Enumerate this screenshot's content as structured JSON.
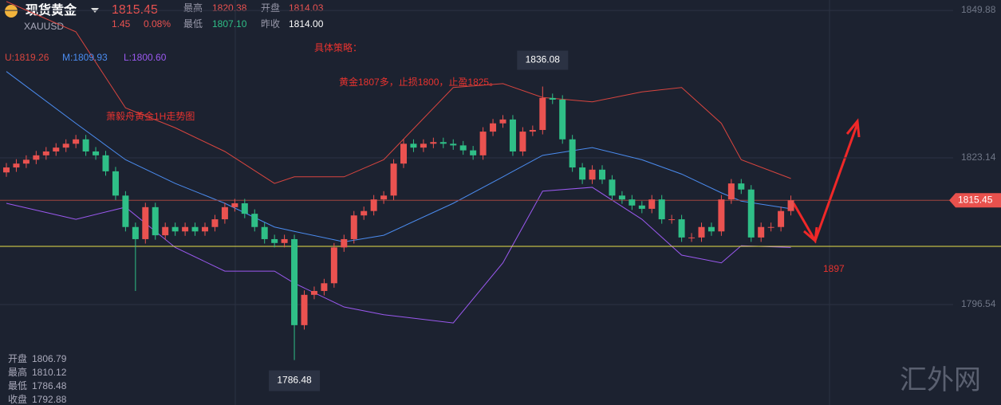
{
  "header": {
    "title": "现货黄金",
    "symbol": "XAUUSD",
    "price": "1815.45",
    "change": "1.45",
    "change_pct": "0.08%",
    "stats": [
      {
        "label": "最高",
        "value": "1820.38"
      },
      {
        "label": "开盘",
        "value": "1814.03"
      },
      {
        "label": "最低",
        "value": "1807.10"
      },
      {
        "label": "昨收",
        "value": "1814.00"
      }
    ]
  },
  "ohlc_info": [
    {
      "label": "开盘",
      "value": "1806.79"
    },
    {
      "label": "最高",
      "value": "1810.12"
    },
    {
      "label": "最低",
      "value": "1786.48"
    },
    {
      "label": "收盘",
      "value": "1792.88"
    }
  ],
  "watermark": "汇外网",
  "chart_data": {
    "type": "candlestick",
    "annotations": [
      "具体策略：",
      "黄金1807多，止损1800，止盈1825。",
      "萧毅舟黄金1H走势图",
      "1897"
    ],
    "ylim": [
      1778.32,
      1851.77
    ],
    "yticks": [
      {
        "value": 1849.88,
        "label": "1849.88"
      },
      1823.14,
      1796.54
    ],
    "current_price": 1815.45,
    "support_line": 1807.1,
    "up_color": "#ea5250",
    "down_color": "#2fbf87",
    "open": [
      1820.5,
      1821.4,
      1822.1,
      1822.8,
      1823.6,
      1824.3,
      1825.0,
      1825.7,
      1826.5,
      1824.3,
      1823.6,
      1820.7,
      1816.3,
      1810.6,
      1808.4,
      1814.2,
      1809.1,
      1810.6,
      1809.8,
      1810.6,
      1809.8,
      1810.6,
      1812.0,
      1814.2,
      1814.9,
      1813.0,
      1810.6,
      1808.4,
      1807.7,
      1808.4,
      1792.8,
      1798.3,
      1799.0,
      1800.4,
      1806.9,
      1808.4,
      1812.7,
      1813.5,
      1815.6,
      1816.3,
      1822.1,
      1825.7,
      1825.0,
      1825.7,
      1826.0,
      1825.7,
      1825.4,
      1824.5,
      1823.6,
      1827.9,
      1829.4,
      1830.1,
      1824.3,
      1827.9,
      1828.2,
      1834.0,
      1833.7,
      1826.5,
      1821.4,
      1819.2,
      1821.0,
      1819.2,
      1816.3,
      1815.6,
      1814.5,
      1813.9,
      1815.6,
      1812.0,
      1812.0,
      1808.7,
      1808.7,
      1810.6,
      1809.8,
      1815.6,
      1818.5,
      1817.4,
      1808.7,
      1810.6,
      1810.6,
      1813.5
    ],
    "high": [
      1822.2,
      1822.9,
      1823.6,
      1824.4,
      1825.1,
      1825.8,
      1826.5,
      1827.3,
      1827.3,
      1825.1,
      1824.4,
      1821.5,
      1817.1,
      1811.4,
      1815.0,
      1815.0,
      1811.4,
      1811.4,
      1811.4,
      1811.4,
      1811.4,
      1812.8,
      1815.0,
      1815.7,
      1815.7,
      1813.8,
      1811.4,
      1809.2,
      1809.2,
      1809.2,
      1799.1,
      1799.8,
      1801.2,
      1807.7,
      1809.2,
      1813.5,
      1814.3,
      1816.4,
      1817.1,
      1822.9,
      1826.5,
      1826.5,
      1826.5,
      1826.8,
      1826.8,
      1826.5,
      1826.2,
      1825.3,
      1828.7,
      1830.2,
      1830.9,
      1830.9,
      1828.7,
      1829.0,
      1836.08,
      1834.8,
      1834.5,
      1827.3,
      1822.2,
      1821.8,
      1821.8,
      1820.0,
      1817.1,
      1816.4,
      1815.3,
      1816.4,
      1816.4,
      1812.8,
      1812.8,
      1809.5,
      1811.4,
      1811.4,
      1816.4,
      1819.3,
      1819.3,
      1818.2,
      1811.4,
      1811.4,
      1814.3,
      1816.3
    ],
    "low": [
      1819.7,
      1820.6,
      1821.3,
      1822.0,
      1822.8,
      1823.5,
      1824.2,
      1824.9,
      1823.5,
      1822.8,
      1819.9,
      1815.5,
      1809.8,
      1799.0,
      1807.6,
      1808.3,
      1808.3,
      1809.0,
      1809.0,
      1809.0,
      1809.0,
      1809.8,
      1811.2,
      1813.4,
      1812.2,
      1809.8,
      1807.6,
      1806.9,
      1806.9,
      1786.48,
      1792.0,
      1797.5,
      1798.2,
      1799.6,
      1806.1,
      1807.6,
      1811.9,
      1812.7,
      1814.8,
      1815.5,
      1821.3,
      1824.2,
      1824.2,
      1824.9,
      1824.9,
      1824.6,
      1823.7,
      1822.8,
      1822.8,
      1827.1,
      1828.6,
      1823.5,
      1823.5,
      1827.1,
      1827.4,
      1832.9,
      1825.7,
      1820.6,
      1818.4,
      1818.4,
      1818.4,
      1815.5,
      1814.8,
      1813.7,
      1813.1,
      1813.1,
      1811.2,
      1811.2,
      1807.9,
      1807.9,
      1807.9,
      1809.0,
      1809.0,
      1814.8,
      1816.6,
      1807.9,
      1807.9,
      1809.8,
      1809.8,
      1812.7
    ],
    "close": [
      1821.4,
      1822.1,
      1822.8,
      1823.6,
      1824.3,
      1825.0,
      1825.7,
      1826.5,
      1824.3,
      1823.6,
      1820.7,
      1816.3,
      1810.6,
      1808.4,
      1814.2,
      1809.1,
      1810.6,
      1809.8,
      1810.6,
      1809.8,
      1810.6,
      1812.0,
      1814.2,
      1814.9,
      1813.0,
      1810.6,
      1808.4,
      1807.7,
      1808.4,
      1792.8,
      1798.3,
      1799.0,
      1800.4,
      1806.9,
      1808.4,
      1812.7,
      1813.5,
      1815.6,
      1816.3,
      1822.1,
      1825.7,
      1825.0,
      1825.7,
      1826.0,
      1825.7,
      1825.4,
      1824.5,
      1823.6,
      1827.9,
      1829.4,
      1830.1,
      1824.3,
      1827.9,
      1828.2,
      1834.0,
      1833.7,
      1826.5,
      1821.4,
      1819.2,
      1821.0,
      1819.2,
      1816.3,
      1815.6,
      1814.5,
      1813.9,
      1815.6,
      1812.0,
      1812.0,
      1808.7,
      1808.7,
      1810.6,
      1809.8,
      1815.6,
      1818.5,
      1817.4,
      1808.7,
      1810.6,
      1810.6,
      1813.5,
      1815.45
    ],
    "series": [
      {
        "name": "U:1819.26",
        "color": "#d9453f",
        "x": [
          0,
          7,
          12,
          17,
          22,
          27,
          29,
          34,
          38,
          45,
          50,
          54,
          59,
          64,
          68,
          72,
          74,
          79
        ],
        "values": [
          1851.5,
          1846.0,
          1832.2,
          1828.6,
          1824.3,
          1818.5,
          1819.7,
          1819.7,
          1822.8,
          1835.9,
          1836.6,
          1834.1,
          1833.3,
          1835.1,
          1835.9,
          1829.4,
          1822.8,
          1819.4
        ]
      },
      {
        "name": "M:1809.93",
        "color": "#4b8cf0",
        "x": [
          0,
          7,
          12,
          17,
          22,
          27,
          29,
          34,
          38,
          45,
          50,
          54,
          59,
          64,
          68,
          72,
          74,
          79
        ],
        "values": [
          1838.8,
          1829.4,
          1822.8,
          1818.5,
          1814.9,
          1810.6,
          1809.8,
          1807.9,
          1809.1,
          1814.9,
          1819.7,
          1823.6,
          1825.0,
          1822.8,
          1820.2,
          1816.8,
          1815.3,
          1813.9
        ]
      },
      {
        "name": "L:1800.60",
        "color": "#9b59f0",
        "x": [
          0,
          7,
          12,
          17,
          22,
          27,
          29,
          34,
          38,
          45,
          50,
          54,
          59,
          64,
          68,
          72,
          74,
          79
        ],
        "values": [
          1814.9,
          1812.0,
          1814.2,
          1806.9,
          1802.6,
          1802.6,
          1800.4,
          1796.1,
          1794.7,
          1793.2,
          1804.1,
          1817.1,
          1817.8,
          1812.0,
          1805.5,
          1804.1,
          1807.2,
          1806.9
        ]
      }
    ]
  }
}
